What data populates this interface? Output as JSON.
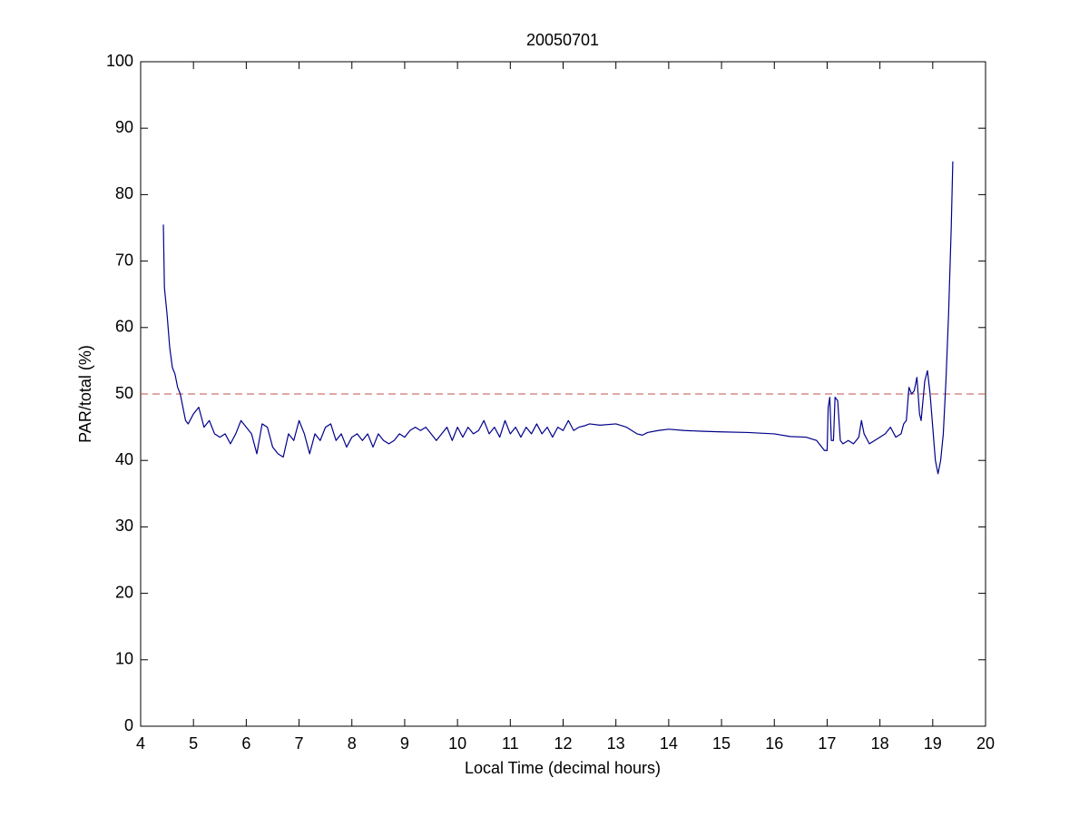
{
  "chart_data": {
    "type": "line",
    "title": "20050701",
    "xlabel": "Local Time (decimal hours)",
    "ylabel": "PAR/total (%)",
    "xlim": [
      4,
      20
    ],
    "ylim": [
      0,
      100
    ],
    "xticks": [
      4,
      5,
      6,
      7,
      8,
      9,
      10,
      11,
      12,
      13,
      14,
      15,
      16,
      17,
      18,
      19,
      20
    ],
    "yticks": [
      0,
      10,
      20,
      30,
      40,
      50,
      60,
      70,
      80,
      90,
      100
    ],
    "reference_line": {
      "value": 50,
      "color": "#c0504d",
      "dashed": true
    },
    "series": [
      {
        "color": "#00008b",
        "x": [
          4.43,
          4.45,
          4.5,
          4.55,
          4.6,
          4.65,
          4.7,
          4.75,
          4.8,
          4.85,
          4.9,
          5.0,
          5.1,
          5.2,
          5.3,
          5.4,
          5.5,
          5.6,
          5.7,
          5.8,
          5.9,
          6.0,
          6.1,
          6.2,
          6.3,
          6.4,
          6.5,
          6.6,
          6.7,
          6.8,
          6.9,
          7.0,
          7.1,
          7.2,
          7.3,
          7.4,
          7.5,
          7.6,
          7.7,
          7.8,
          7.9,
          8.0,
          8.1,
          8.2,
          8.3,
          8.4,
          8.5,
          8.6,
          8.7,
          8.8,
          8.9,
          9.0,
          9.1,
          9.2,
          9.3,
          9.4,
          9.5,
          9.6,
          9.7,
          9.8,
          9.9,
          10.0,
          10.1,
          10.2,
          10.3,
          10.4,
          10.5,
          10.6,
          10.7,
          10.8,
          10.9,
          11.0,
          11.1,
          11.2,
          11.3,
          11.4,
          11.5,
          11.6,
          11.7,
          11.8,
          11.9,
          12.0,
          12.1,
          12.2,
          12.3,
          12.4,
          12.5,
          12.7,
          13.0,
          13.2,
          13.4,
          13.5,
          13.6,
          13.8,
          14.0,
          14.3,
          14.6,
          15.0,
          15.5,
          16.0,
          16.3,
          16.6,
          16.8,
          16.95,
          17.0,
          17.02,
          17.05,
          17.08,
          17.12,
          17.15,
          17.2,
          17.25,
          17.3,
          17.4,
          17.5,
          17.6,
          17.65,
          17.7,
          17.8,
          17.9,
          18.0,
          18.1,
          18.2,
          18.3,
          18.4,
          18.45,
          18.5,
          18.55,
          18.6,
          18.65,
          18.7,
          18.75,
          18.78,
          18.85,
          18.9,
          18.95,
          19.0,
          19.05,
          19.1,
          19.15,
          19.2,
          19.25,
          19.3,
          19.35,
          19.38
        ],
        "values": [
          75.5,
          66,
          62,
          57,
          54,
          53,
          51,
          50,
          48,
          46,
          45.5,
          47,
          48,
          45,
          46,
          44,
          43.5,
          44,
          42.5,
          44,
          46,
          45,
          44,
          41,
          45.5,
          45,
          42,
          41,
          40.5,
          44,
          43,
          46,
          44,
          41,
          44,
          43,
          45,
          45.5,
          43,
          44,
          42,
          43.5,
          44,
          43,
          44,
          42,
          44,
          43,
          42.5,
          43,
          44,
          43.5,
          44.5,
          45,
          44.5,
          45,
          44,
          43,
          44,
          45,
          43,
          45,
          43.5,
          45,
          44,
          44.5,
          46,
          44,
          45,
          43.5,
          46,
          44,
          45,
          43.5,
          45,
          44,
          45.5,
          44,
          45,
          43.5,
          45,
          44.5,
          46,
          44.5,
          45,
          45.2,
          45.5,
          45.3,
          45.5,
          45,
          44,
          43.8,
          44.2,
          44.5,
          44.7,
          44.5,
          44.4,
          44.3,
          44.2,
          44,
          43.6,
          43.5,
          43,
          41.5,
          41.5,
          48,
          49.5,
          43,
          43,
          49.5,
          49,
          43,
          42.5,
          43,
          42.5,
          43.5,
          46,
          44,
          42.5,
          43,
          43.5,
          44,
          45,
          43.5,
          44,
          45.5,
          46,
          51,
          50,
          50.5,
          52.5,
          47,
          46,
          52,
          53.5,
          50,
          45,
          40,
          38,
          40,
          44,
          52,
          62,
          75,
          85
        ]
      }
    ]
  }
}
